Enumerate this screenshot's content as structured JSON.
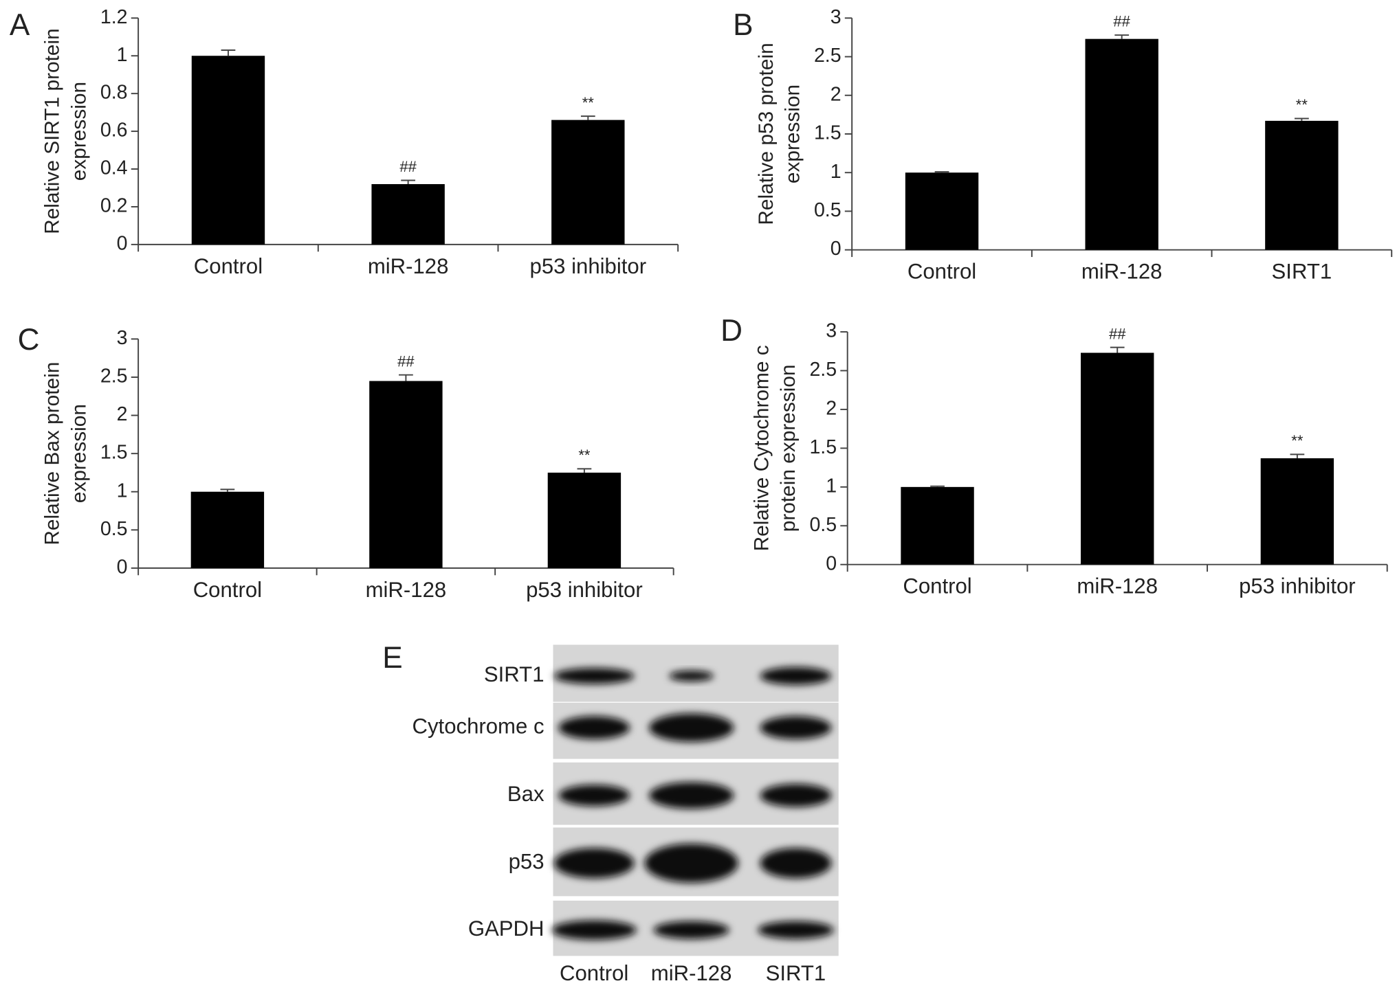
{
  "chart_data": [
    {
      "type": "bar",
      "panel": "A",
      "ylabel": [
        "Relative SIRT1 protein",
        "expression"
      ],
      "categories": [
        "Control",
        "miR-128",
        "p53 inhibitor"
      ],
      "values": [
        1.0,
        0.32,
        0.66
      ],
      "errors": [
        0.03,
        0.02,
        0.02
      ],
      "bar_labels": [
        null,
        "##",
        "**"
      ],
      "color": "#000000",
      "ylim": [
        0,
        1.2
      ],
      "yticks": [
        0,
        0.2,
        0.4,
        0.6,
        0.8,
        1,
        1.2
      ]
    },
    {
      "type": "bar",
      "panel": "B",
      "ylabel": [
        "Relative p53 protein",
        "expression"
      ],
      "categories": [
        "Control",
        "miR-128",
        "SIRT1"
      ],
      "values": [
        1.0,
        2.73,
        1.67
      ],
      "errors": [
        0.01,
        0.05,
        0.03
      ],
      "bar_labels": [
        null,
        "##",
        "**"
      ],
      "color": "#000000",
      "ylim": [
        0,
        3
      ],
      "yticks": [
        0,
        0.5,
        1,
        1.5,
        2,
        2.5,
        3
      ]
    },
    {
      "type": "bar",
      "panel": "C",
      "ylabel": [
        "Relative Bax protein",
        "expression"
      ],
      "categories": [
        "Control",
        "miR-128",
        "p53 inhibitor"
      ],
      "values": [
        1.0,
        2.45,
        1.25
      ],
      "errors": [
        0.03,
        0.08,
        0.05
      ],
      "bar_labels": [
        null,
        "##",
        "**"
      ],
      "color": "#000000",
      "ylim": [
        0,
        3
      ],
      "yticks": [
        0,
        0.5,
        1,
        1.5,
        2,
        2.5,
        3
      ]
    },
    {
      "type": "bar",
      "panel": "D",
      "ylabel": [
        "Relative Cytochrome c",
        "protein expression"
      ],
      "categories": [
        "Control",
        "miR-128",
        "p53 inhibitor"
      ],
      "values": [
        1.0,
        2.73,
        1.37
      ],
      "errors": [
        0.01,
        0.07,
        0.05
      ],
      "bar_labels": [
        null,
        "##",
        "**"
      ],
      "color": "#000000",
      "ylim": [
        0,
        3
      ],
      "yticks": [
        0,
        0.5,
        1,
        1.5,
        2,
        2.5,
        3
      ]
    }
  ],
  "blot": {
    "panel": "E",
    "rows": [
      "SIRT1",
      "Cytochrome c",
      "Bax",
      "p53",
      "GAPDH"
    ],
    "lanes": [
      "Control",
      "miR-128",
      "SIRT1"
    ]
  }
}
